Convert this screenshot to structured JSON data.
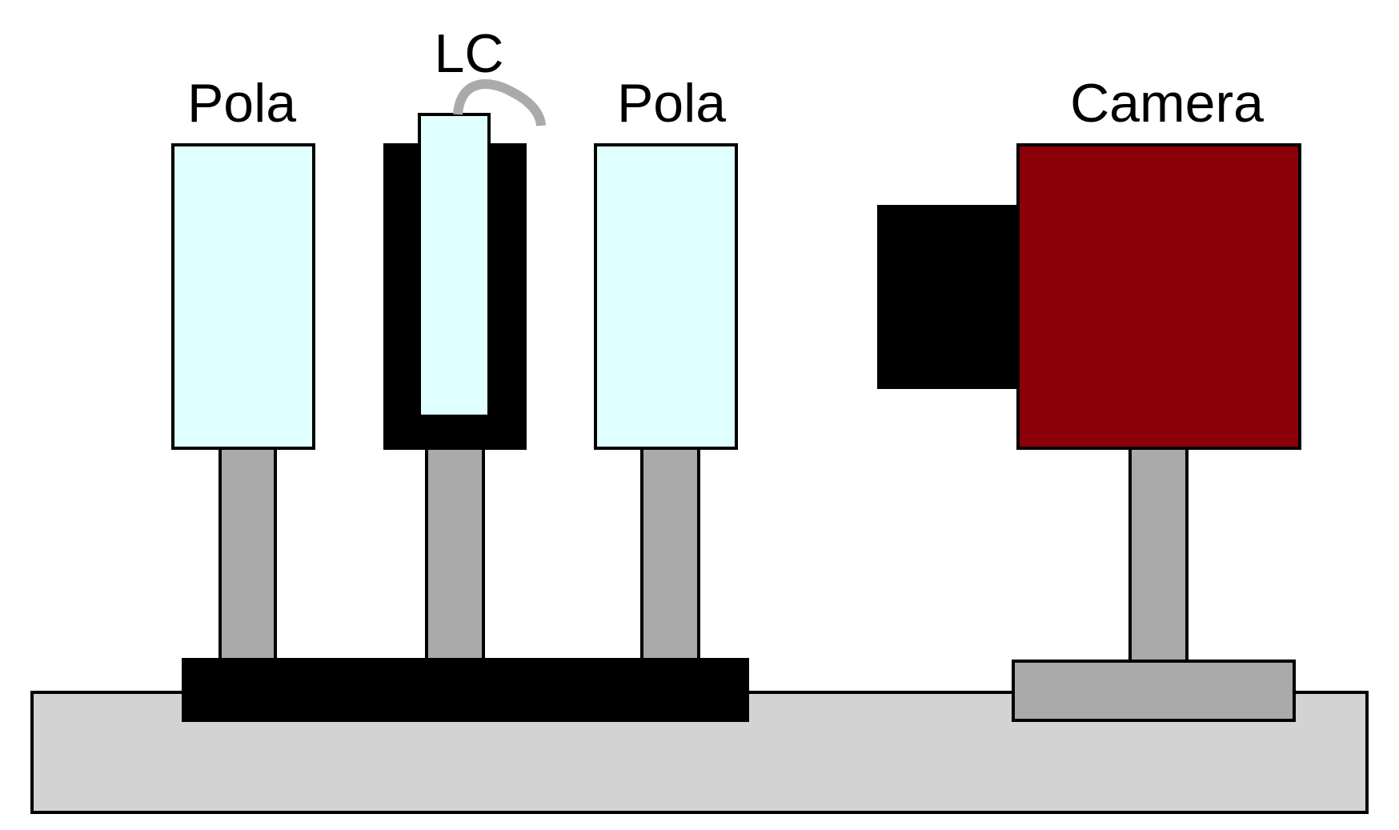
{
  "labels": {
    "polarizer_left": "Pola",
    "liquid_crystal": "LC",
    "polarizer_right": "Pola",
    "camera": "Camera"
  },
  "colors": {
    "optical_element": "#e0ffff",
    "camera_body": "#8b0008",
    "post": "#aaaaaa",
    "table": "#d3d3d3",
    "rail": "#000000",
    "camera_base": "#aaaaaa",
    "lens": "#000000",
    "cable": "#aaaaaa",
    "outline": "#000000"
  }
}
